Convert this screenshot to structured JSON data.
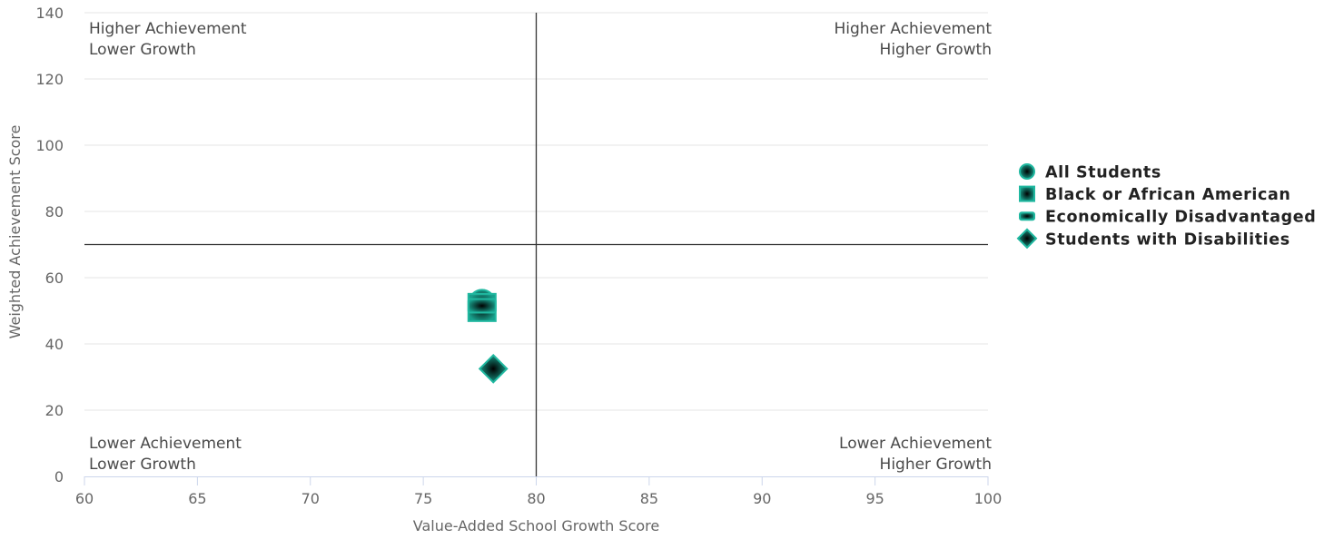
{
  "chart_data": {
    "type": "scatter",
    "xlabel": "Value-Added School Growth Score",
    "ylabel": "Weighted Achievement Score",
    "xlim": [
      60,
      100
    ],
    "ylim": [
      0,
      140
    ],
    "x_ticks": [
      60,
      65,
      70,
      75,
      80,
      85,
      90,
      95,
      100
    ],
    "y_ticks": [
      0,
      20,
      40,
      60,
      80,
      100,
      120,
      140
    ],
    "grid": "horizontal",
    "reference_lines": {
      "x": 80,
      "y": 70
    },
    "quadrant_labels": {
      "top_left": [
        "Higher Achievement",
        "Lower Growth"
      ],
      "top_right": [
        "Higher Achievement",
        "Higher Growth"
      ],
      "bottom_left": [
        "Lower Achievement",
        "Lower Growth"
      ],
      "bottom_right": [
        "Lower Achievement",
        "Higher Growth"
      ]
    },
    "legend_position": "right",
    "series": [
      {
        "name": "All Students",
        "marker": "circle",
        "x": 77.6,
        "y": 52.5
      },
      {
        "name": "Black or African American",
        "marker": "square",
        "x": 77.6,
        "y": 51.0
      },
      {
        "name": "Economically Disadvantaged",
        "marker": "rect",
        "x": 77.6,
        "y": 51.5
      },
      {
        "name": "Students with Disabilities",
        "marker": "diamond",
        "x": 78.1,
        "y": 32.5
      }
    ],
    "colors": {
      "marker_fill": "#0f7a6a",
      "marker_edge": "#20b8a0",
      "grid": "#e6e6e6",
      "reference_line": "#333333",
      "axis": "#ccd6eb"
    }
  }
}
